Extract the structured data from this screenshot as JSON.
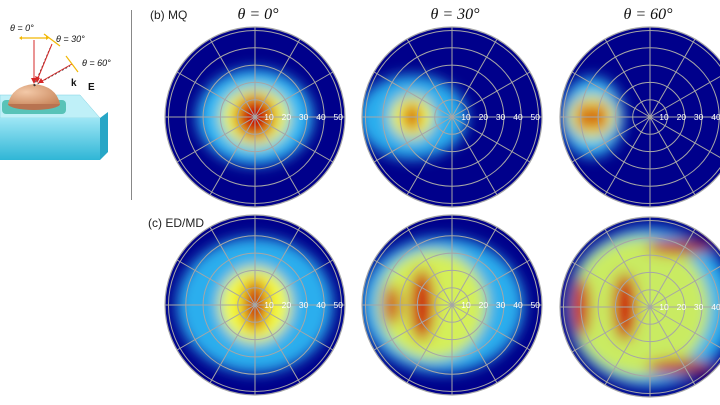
{
  "schematic": {
    "angle_labels": [
      "θ = 0°",
      "θ = 30°",
      "θ = 60°"
    ],
    "k_label": "k",
    "e_label": "E"
  },
  "panels": {
    "b_label": "(b) MQ",
    "c_label": "(c) ED/MD",
    "titles": [
      "θ = 0°",
      "θ = 30°",
      "θ = 60°"
    ]
  },
  "radial_ticks": [
    "10",
    "20",
    "30",
    "40",
    "50"
  ],
  "colors": {
    "background": "#00008b",
    "grid": "#a6a6a6",
    "high": "#cc0000",
    "mid": "#ffff33",
    "low": "#33ccff"
  }
}
